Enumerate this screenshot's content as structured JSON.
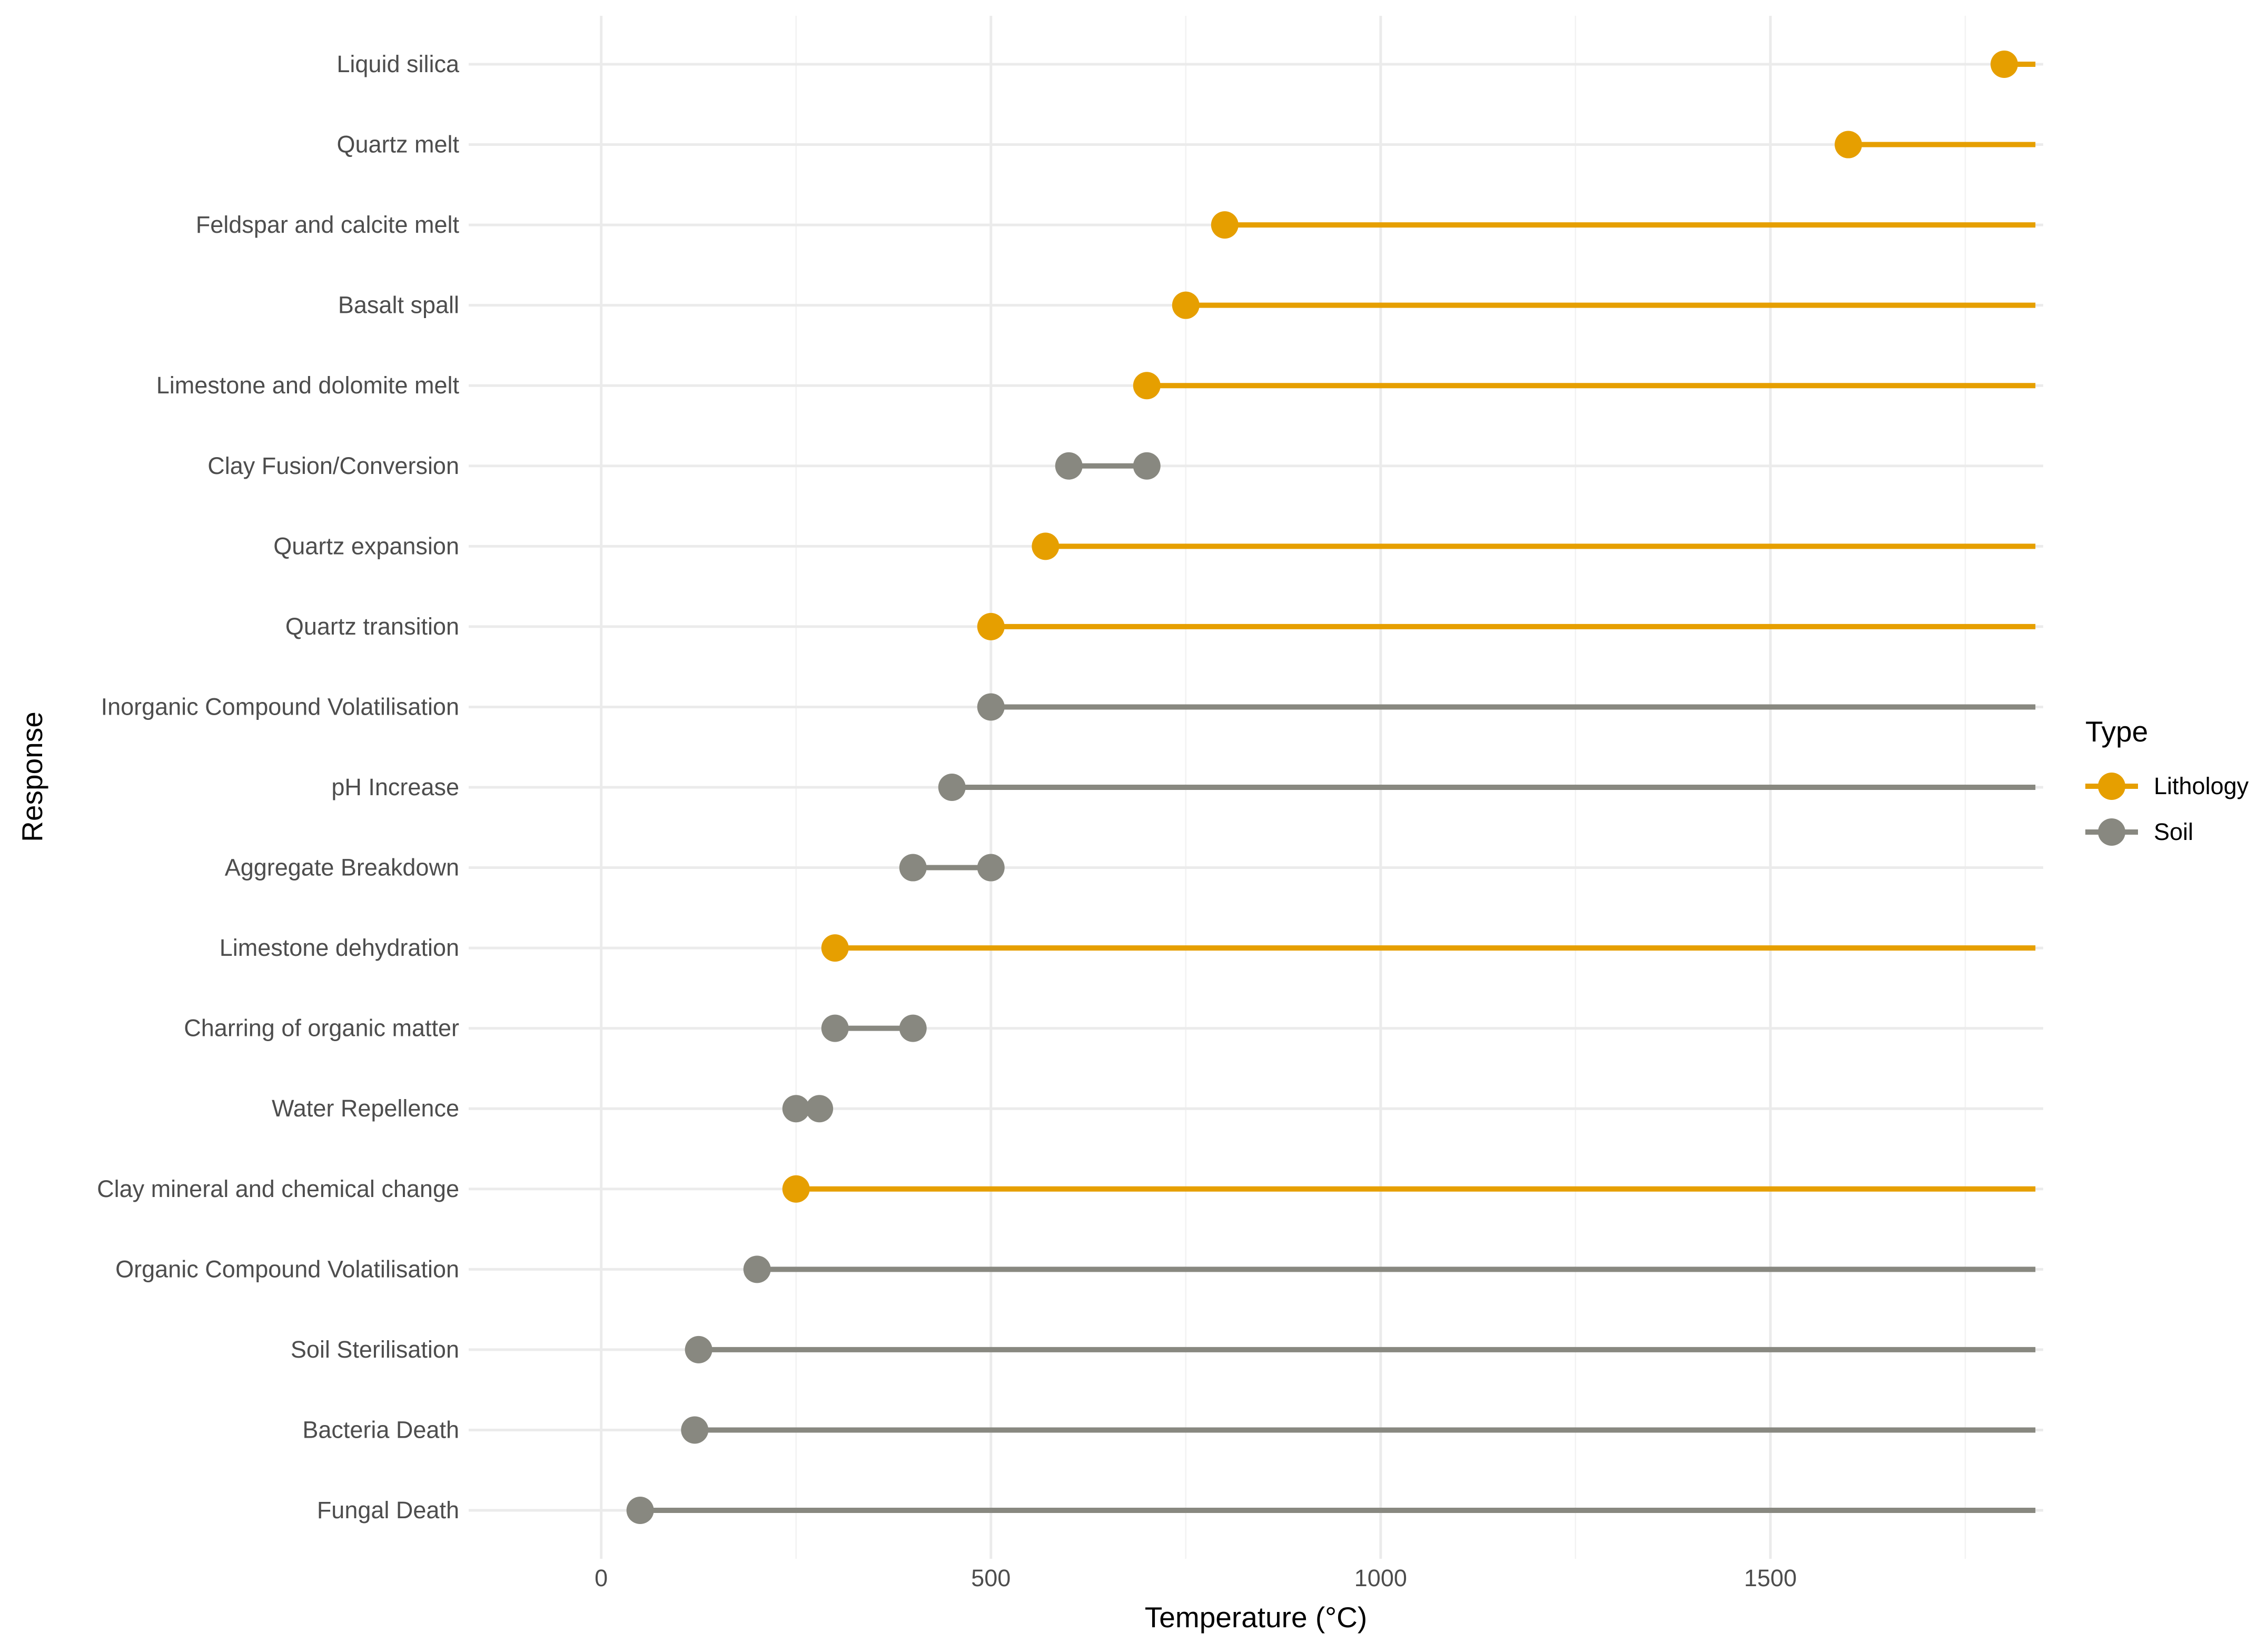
{
  "chart_data": {
    "type": "lollipop",
    "title": "",
    "xlabel": "Temperature (°C)",
    "ylabel": "Response",
    "xlim": [
      -170,
      1850
    ],
    "x_max_plotted": 1840,
    "x_ticks": [
      0,
      500,
      1000,
      1500
    ],
    "x_tick_labels": [
      "0",
      "500",
      "1000",
      "1500"
    ],
    "grid": true,
    "legend": {
      "title": "Type",
      "position": "right",
      "entries": [
        {
          "name": "Lithology",
          "color": "#E69F00"
        },
        {
          "name": "Soil",
          "color": "#888880"
        }
      ]
    },
    "categories": [
      "Liquid silica",
      "Quartz melt",
      "Feldspar and calcite melt",
      "Basalt spall",
      "Limestone and dolomite melt",
      "Clay Fusion/Conversion",
      "Quartz expansion",
      "Quartz transition",
      "Inorganic Compound Volatilisation",
      "pH Increase",
      "Aggregate Breakdown",
      "Limestone dehydration",
      "Charring of organic matter",
      "Water Repellence",
      "Clay mineral and chemical change",
      "Organic Compound Volatilisation",
      "Soil Sterilisation",
      "Bacteria Death",
      "Fungal Death"
    ],
    "series": [
      {
        "response": "Liquid silica",
        "type": "Lithology",
        "start": 1800,
        "end": 1840,
        "points": [
          1800
        ]
      },
      {
        "response": "Quartz melt",
        "type": "Lithology",
        "start": 1600,
        "end": 1840,
        "points": [
          1600
        ]
      },
      {
        "response": "Feldspar and calcite melt",
        "type": "Lithology",
        "start": 800,
        "end": 1840,
        "points": [
          800
        ]
      },
      {
        "response": "Basalt spall",
        "type": "Lithology",
        "start": 750,
        "end": 1840,
        "points": [
          750
        ]
      },
      {
        "response": "Limestone and dolomite melt",
        "type": "Lithology",
        "start": 700,
        "end": 1840,
        "points": [
          700
        ]
      },
      {
        "response": "Clay Fusion/Conversion",
        "type": "Soil",
        "start": 600,
        "end": 700,
        "points": [
          600,
          700
        ]
      },
      {
        "response": "Quartz expansion",
        "type": "Lithology",
        "start": 570,
        "end": 1840,
        "points": [
          570
        ]
      },
      {
        "response": "Quartz transition",
        "type": "Lithology",
        "start": 500,
        "end": 1840,
        "points": [
          500
        ]
      },
      {
        "response": "Inorganic Compound Volatilisation",
        "type": "Soil",
        "start": 500,
        "end": 1840,
        "points": [
          500
        ]
      },
      {
        "response": "pH Increase",
        "type": "Soil",
        "start": 450,
        "end": 1840,
        "points": [
          450
        ]
      },
      {
        "response": "Aggregate Breakdown",
        "type": "Soil",
        "start": 400,
        "end": 500,
        "points": [
          400,
          500
        ]
      },
      {
        "response": "Limestone dehydration",
        "type": "Lithology",
        "start": 300,
        "end": 1840,
        "points": [
          300
        ]
      },
      {
        "response": "Charring of organic matter",
        "type": "Soil",
        "start": 300,
        "end": 400,
        "points": [
          300,
          400
        ]
      },
      {
        "response": "Water Repellence",
        "type": "Soil",
        "start": 250,
        "end": 280,
        "points": [
          250,
          280
        ]
      },
      {
        "response": "Clay mineral and chemical change",
        "type": "Lithology",
        "start": 250,
        "end": 1840,
        "points": [
          250
        ]
      },
      {
        "response": "Organic Compound Volatilisation",
        "type": "Soil",
        "start": 200,
        "end": 1840,
        "points": [
          200
        ]
      },
      {
        "response": "Soil Sterilisation",
        "type": "Soil",
        "start": 125,
        "end": 1840,
        "points": [
          125
        ]
      },
      {
        "response": "Bacteria Death",
        "type": "Soil",
        "start": 120,
        "end": 1840,
        "points": [
          120
        ]
      },
      {
        "response": "Fungal Death",
        "type": "Soil",
        "start": 50,
        "end": 1840,
        "points": [
          50
        ]
      }
    ]
  }
}
